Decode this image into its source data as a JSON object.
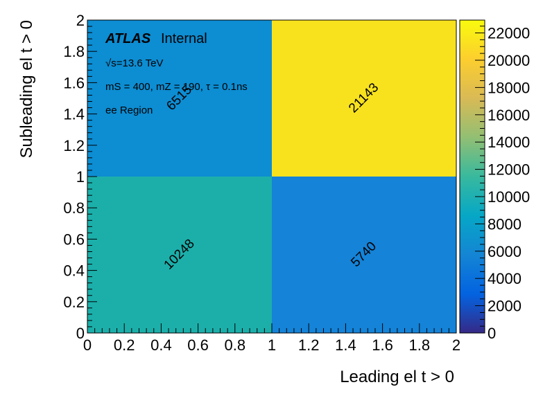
{
  "chart_data": {
    "type": "heatmap",
    "xlabel": "Leading el t > 0",
    "ylabel": "Subleading el t > 0",
    "xlim": [
      0,
      2
    ],
    "ylim": [
      0,
      2
    ],
    "x_ticks": [
      "0",
      "0.2",
      "0.4",
      "0.6",
      "0.8",
      "1",
      "1.2",
      "1.4",
      "1.6",
      "1.8",
      "2"
    ],
    "y_ticks": [
      "0",
      "0.2",
      "0.4",
      "0.6",
      "0.8",
      "1",
      "1.2",
      "1.4",
      "1.6",
      "1.8",
      "2"
    ],
    "x_bins": [
      [
        0,
        1
      ],
      [
        1,
        2
      ]
    ],
    "y_bins": [
      [
        0,
        1
      ],
      [
        1,
        2
      ]
    ],
    "cells": [
      {
        "x_bin": 0,
        "y_bin": 0,
        "value": 10248,
        "label": "10248",
        "color": "#1CAFAA"
      },
      {
        "x_bin": 1,
        "y_bin": 0,
        "value": 5740,
        "label": "5740",
        "color": "#1483D8"
      },
      {
        "x_bin": 0,
        "y_bin": 1,
        "value": 6515,
        "label": "6515",
        "color": "#0D8DD2"
      },
      {
        "x_bin": 1,
        "y_bin": 1,
        "value": 21143,
        "label": "21143",
        "color": "#F8E21E"
      }
    ],
    "colorbar": {
      "range": [
        0,
        22943
      ],
      "ticks": [
        "0",
        "2000",
        "4000",
        "6000",
        "8000",
        "10000",
        "12000",
        "14000",
        "16000",
        "18000",
        "20000",
        "22000"
      ],
      "colors": [
        "#352A87",
        "#0363E1",
        "#1485D4",
        "#06A7C6",
        "#38B99E",
        "#92BF73",
        "#D9BA56",
        "#FCCE2E",
        "#F9FB0E"
      ]
    },
    "annotations": {
      "atlas": "ATLAS",
      "atlas_status": "Internal",
      "energy": "√s=13.6 TeV",
      "params": "mS = 400, mZ = 190, τ = 0.1ns",
      "region": "ee Region"
    }
  }
}
